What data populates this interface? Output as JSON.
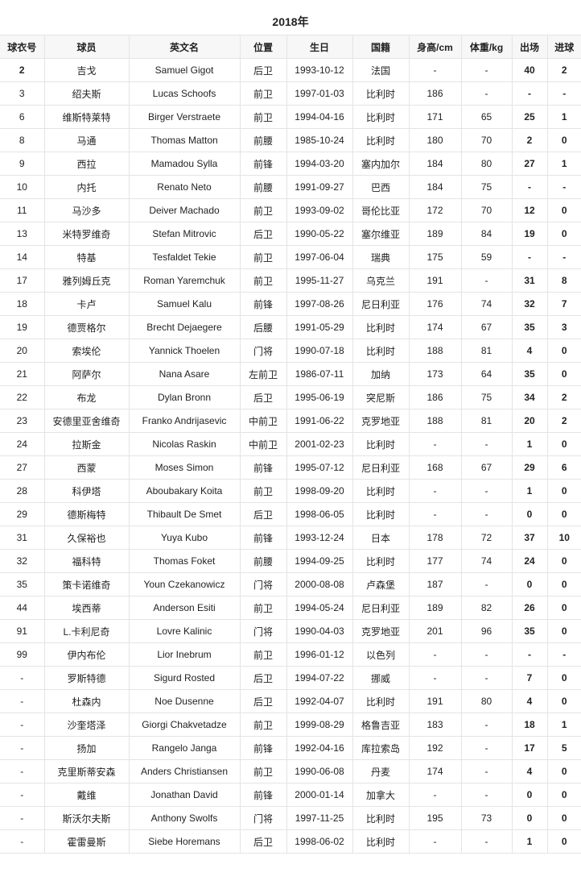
{
  "title": "2018年",
  "columns": [
    "球衣号",
    "球员",
    "英文名",
    "位置",
    "生日",
    "国籍",
    "身高/cm",
    "体重/kg",
    "出场",
    "进球"
  ],
  "rows": [
    [
      "2",
      "吉戈",
      "Samuel Gigot",
      "后卫",
      "1993-10-12",
      "法国",
      "-",
      "-",
      "40",
      "2"
    ],
    [
      "3",
      "绍夫斯",
      "Lucas Schoofs",
      "前卫",
      "1997-01-03",
      "比利时",
      "186",
      "-",
      "-",
      "-"
    ],
    [
      "6",
      "维斯特莱特",
      "Birger Verstraete",
      "前卫",
      "1994-04-16",
      "比利时",
      "171",
      "65",
      "25",
      "1"
    ],
    [
      "8",
      "马通",
      "Thomas Matton",
      "前腰",
      "1985-10-24",
      "比利时",
      "180",
      "70",
      "2",
      "0"
    ],
    [
      "9",
      "西拉",
      "Mamadou Sylla",
      "前锋",
      "1994-03-20",
      "塞内加尔",
      "184",
      "80",
      "27",
      "1"
    ],
    [
      "10",
      "内托",
      "Renato Neto",
      "前腰",
      "1991-09-27",
      "巴西",
      "184",
      "75",
      "-",
      "-"
    ],
    [
      "11",
      "马沙多",
      "Deiver Machado",
      "前卫",
      "1993-09-02",
      "哥伦比亚",
      "172",
      "70",
      "12",
      "0"
    ],
    [
      "13",
      "米特罗维奇",
      "Stefan Mitrovic",
      "后卫",
      "1990-05-22",
      "塞尔维亚",
      "189",
      "84",
      "19",
      "0"
    ],
    [
      "14",
      "特基",
      "Tesfaldet Tekie",
      "前卫",
      "1997-06-04",
      "瑞典",
      "175",
      "59",
      "-",
      "-"
    ],
    [
      "17",
      "雅列姆丘克",
      "Roman Yaremchuk",
      "前卫",
      "1995-11-27",
      "乌克兰",
      "191",
      "-",
      "31",
      "8"
    ],
    [
      "18",
      "卡卢",
      "Samuel Kalu",
      "前锋",
      "1997-08-26",
      "尼日利亚",
      "176",
      "74",
      "32",
      "7"
    ],
    [
      "19",
      "德贾格尔",
      "Brecht Dejaegere",
      "后腰",
      "1991-05-29",
      "比利时",
      "174",
      "67",
      "35",
      "3"
    ],
    [
      "20",
      "索埃伦",
      "Yannick Thoelen",
      "门将",
      "1990-07-18",
      "比利时",
      "188",
      "81",
      "4",
      "0"
    ],
    [
      "21",
      "阿萨尔",
      "Nana Asare",
      "左前卫",
      "1986-07-11",
      "加纳",
      "173",
      "64",
      "35",
      "0"
    ],
    [
      "22",
      "布龙",
      "Dylan Bronn",
      "后卫",
      "1995-06-19",
      "突尼斯",
      "186",
      "75",
      "34",
      "2"
    ],
    [
      "23",
      "安德里亚舍维奇",
      "Franko Andrijasevic",
      "中前卫",
      "1991-06-22",
      "克罗地亚",
      "188",
      "81",
      "20",
      "2"
    ],
    [
      "24",
      "拉斯金",
      "Nicolas Raskin",
      "中前卫",
      "2001-02-23",
      "比利时",
      "-",
      "-",
      "1",
      "0"
    ],
    [
      "27",
      "西蒙",
      "Moses Simon",
      "前锋",
      "1995-07-12",
      "尼日利亚",
      "168",
      "67",
      "29",
      "6"
    ],
    [
      "28",
      "科伊塔",
      "Aboubakary Koita",
      "前卫",
      "1998-09-20",
      "比利时",
      "-",
      "-",
      "1",
      "0"
    ],
    [
      "29",
      "德斯梅特",
      "Thibault De Smet",
      "后卫",
      "1998-06-05",
      "比利时",
      "-",
      "-",
      "0",
      "0"
    ],
    [
      "31",
      "久保裕也",
      "Yuya Kubo",
      "前锋",
      "1993-12-24",
      "日本",
      "178",
      "72",
      "37",
      "10"
    ],
    [
      "32",
      "福科特",
      "Thomas Foket",
      "前腰",
      "1994-09-25",
      "比利时",
      "177",
      "74",
      "24",
      "0"
    ],
    [
      "35",
      "策卡诺维奇",
      "Youn Czekanowicz",
      "门将",
      "2000-08-08",
      "卢森堡",
      "187",
      "-",
      "0",
      "0"
    ],
    [
      "44",
      "埃西蒂",
      "Anderson Esiti",
      "前卫",
      "1994-05-24",
      "尼日利亚",
      "189",
      "82",
      "26",
      "0"
    ],
    [
      "91",
      "L.卡利尼奇",
      "Lovre Kalinic",
      "门将",
      "1990-04-03",
      "克罗地亚",
      "201",
      "96",
      "35",
      "0"
    ],
    [
      "99",
      "伊内布伦",
      "Lior Inebrum",
      "前卫",
      "1996-01-12",
      "以色列",
      "-",
      "-",
      "-",
      "-"
    ],
    [
      "-",
      "罗斯特德",
      "Sigurd Rosted",
      "后卫",
      "1994-07-22",
      "挪威",
      "-",
      "-",
      "7",
      "0"
    ],
    [
      "-",
      "杜森内",
      "Noe Dusenne",
      "后卫",
      "1992-04-07",
      "比利时",
      "191",
      "80",
      "4",
      "0"
    ],
    [
      "-",
      "沙奎塔泽",
      "Giorgi Chakvetadze",
      "前卫",
      "1999-08-29",
      "格鲁吉亚",
      "183",
      "-",
      "18",
      "1"
    ],
    [
      "-",
      "扬加",
      "Rangelo Janga",
      "前锋",
      "1992-04-16",
      "库拉索岛",
      "192",
      "-",
      "17",
      "5"
    ],
    [
      "-",
      "克里斯蒂安森",
      "Anders Christiansen",
      "前卫",
      "1990-06-08",
      "丹麦",
      "174",
      "-",
      "4",
      "0"
    ],
    [
      "-",
      "戴维",
      "Jonathan David",
      "前锋",
      "2000-01-14",
      "加拿大",
      "-",
      "-",
      "0",
      "0"
    ],
    [
      "-",
      "斯沃尔夫斯",
      "Anthony Swolfs",
      "门将",
      "1997-11-25",
      "比利时",
      "195",
      "73",
      "0",
      "0"
    ],
    [
      "-",
      "霍雷曼斯",
      "Siebe Horemans",
      "后卫",
      "1998-06-02",
      "比利时",
      "-",
      "-",
      "1",
      "0"
    ]
  ]
}
